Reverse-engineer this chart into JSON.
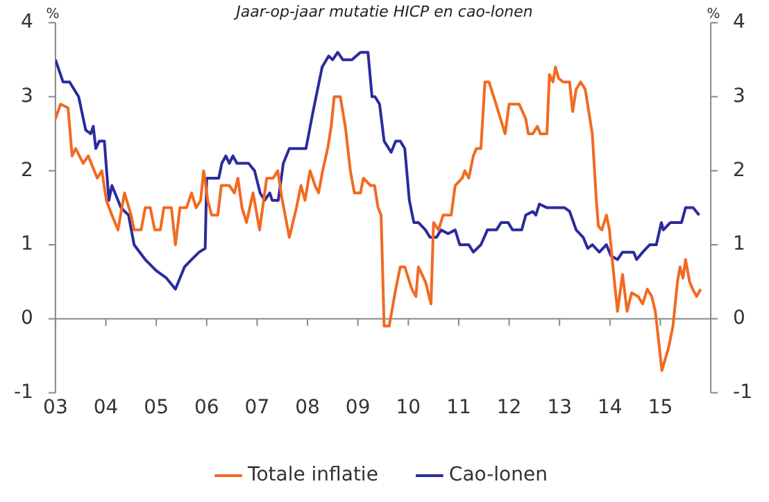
{
  "chart_data": {
    "type": "line",
    "title": "Jaar-op-jaar mutatie HICP en cao-lonen",
    "ylabel": "%",
    "y2label": "%",
    "xlim": [
      2003,
      2016
    ],
    "xticks": [
      {
        "value": 2003,
        "label": "03"
      },
      {
        "value": 2004,
        "label": "04"
      },
      {
        "value": 2005,
        "label": "05"
      },
      {
        "value": 2006,
        "label": "06"
      },
      {
        "value": 2007,
        "label": "07"
      },
      {
        "value": 2008,
        "label": "08"
      },
      {
        "value": 2009,
        "label": "09"
      },
      {
        "value": 2010,
        "label": "10"
      },
      {
        "value": 2011,
        "label": "11"
      },
      {
        "value": 2012,
        "label": "12"
      },
      {
        "value": 2013,
        "label": "13"
      },
      {
        "value": 2014,
        "label": "14"
      },
      {
        "value": 2015,
        "label": "15"
      }
    ],
    "ylim": [
      -1,
      4
    ],
    "yticks": [
      -1,
      0,
      1,
      2,
      3,
      4
    ],
    "y2lim": [
      -1,
      4
    ],
    "y2ticks": [
      -1,
      0,
      1,
      2,
      3,
      4
    ],
    "ref_lines": [
      {
        "axis": "y",
        "value": 0,
        "color": "#888888"
      }
    ],
    "legend": "bottom",
    "grid": false,
    "marker": "none",
    "line_style": "solid",
    "series": [
      {
        "name": "Totale inflatie",
        "color": "#f26a21",
        "x": [
          2003.0,
          2003.1,
          2003.25,
          2003.33,
          2003.4,
          2003.55,
          2003.65,
          2003.83,
          2003.92,
          2004.01,
          2004.12,
          2004.24,
          2004.37,
          2004.5,
          2004.56,
          2004.7,
          2004.78,
          2004.88,
          2004.97,
          2005.08,
          2005.15,
          2005.3,
          2005.38,
          2005.47,
          2005.6,
          2005.7,
          2005.79,
          2005.88,
          2005.94,
          2006.02,
          2006.1,
          2006.22,
          2006.29,
          2006.45,
          2006.55,
          2006.62,
          2006.7,
          2006.79,
          2006.92,
          2007.05,
          2007.19,
          2007.32,
          2007.41,
          2007.5,
          2007.64,
          2007.78,
          2007.87,
          2007.95,
          2008.05,
          2008.15,
          2008.22,
          2008.3,
          2008.4,
          2008.47,
          2008.53,
          2008.65,
          2008.75,
          2008.85,
          2008.93,
          2009.05,
          2009.11,
          2009.25,
          2009.33,
          2009.4,
          2009.46,
          2009.52,
          2009.62,
          2009.75,
          2009.84,
          2009.93,
          2010.07,
          2010.15,
          2010.2,
          2010.34,
          2010.45,
          2010.5,
          2010.6,
          2010.69,
          2010.85,
          2010.93,
          2011.07,
          2011.12,
          2011.2,
          2011.29,
          2011.35,
          2011.44,
          2011.52,
          2011.6,
          2011.74,
          2011.83,
          2011.92,
          2012.0,
          2012.2,
          2012.33,
          2012.38,
          2012.47,
          2012.56,
          2012.62,
          2012.75,
          2012.8,
          2012.87,
          2012.92,
          2012.98,
          2013.07,
          2013.2,
          2013.26,
          2013.33,
          2013.42,
          2013.51,
          2013.65,
          2013.73,
          2013.77,
          2013.84,
          2013.93,
          2013.99,
          2014.06,
          2014.15,
          2014.25,
          2014.34,
          2014.43,
          2014.56,
          2014.65,
          2014.74,
          2014.83,
          2014.9,
          2014.95,
          2015.03,
          2015.16,
          2015.25,
          2015.34,
          2015.39,
          2015.45,
          2015.5,
          2015.58,
          2015.64,
          2015.72,
          2015.8
        ],
        "values": [
          2.7,
          2.9,
          2.85,
          2.2,
          2.3,
          2.1,
          2.2,
          1.9,
          2.0,
          1.6,
          1.4,
          1.2,
          1.7,
          1.4,
          1.2,
          1.2,
          1.5,
          1.5,
          1.2,
          1.2,
          1.5,
          1.5,
          1.0,
          1.5,
          1.5,
          1.7,
          1.5,
          1.6,
          2.0,
          1.6,
          1.4,
          1.4,
          1.8,
          1.8,
          1.7,
          1.9,
          1.5,
          1.3,
          1.7,
          1.2,
          1.9,
          1.9,
          2.0,
          1.6,
          1.1,
          1.5,
          1.8,
          1.6,
          2.0,
          1.8,
          1.7,
          2.0,
          2.3,
          2.6,
          3.0,
          3.0,
          2.6,
          2.0,
          1.7,
          1.7,
          1.9,
          1.8,
          1.8,
          1.5,
          1.4,
          -0.1,
          -0.1,
          0.4,
          0.7,
          0.7,
          0.4,
          0.3,
          0.7,
          0.5,
          0.2,
          1.3,
          1.2,
          1.4,
          1.4,
          1.8,
          1.9,
          2.0,
          1.9,
          2.2,
          2.3,
          2.3,
          3.2,
          3.2,
          2.9,
          2.7,
          2.5,
          2.9,
          2.9,
          2.7,
          2.5,
          2.5,
          2.6,
          2.5,
          2.5,
          3.3,
          3.2,
          3.4,
          3.25,
          3.2,
          3.2,
          2.8,
          3.1,
          3.2,
          3.1,
          2.5,
          1.6,
          1.25,
          1.2,
          1.4,
          1.2,
          0.7,
          0.1,
          0.6,
          0.1,
          0.35,
          0.3,
          0.2,
          0.4,
          0.3,
          0.1,
          -0.2,
          -0.7,
          -0.4,
          -0.1,
          0.5,
          0.7,
          0.55,
          0.8,
          0.5,
          0.4,
          0.3,
          0.4
        ]
      },
      {
        "name": "Cao-lonen",
        "color": "#2b2b9e",
        "x": [
          2003.0,
          2003.15,
          2003.28,
          2003.46,
          2003.6,
          2003.7,
          2003.75,
          2003.8,
          2003.87,
          2003.97,
          2004.06,
          2004.12,
          2004.3,
          2004.45,
          2004.56,
          2004.78,
          2005.0,
          2005.2,
          2005.38,
          2005.56,
          2005.7,
          2005.85,
          2005.97,
          2006.0,
          2006.24,
          2006.3,
          2006.38,
          2006.45,
          2006.52,
          2006.6,
          2006.83,
          2006.95,
          2007.06,
          2007.15,
          2007.25,
          2007.3,
          2007.42,
          2007.52,
          2007.64,
          2007.97,
          2008.11,
          2008.29,
          2008.42,
          2008.5,
          2008.6,
          2008.7,
          2008.88,
          2009.05,
          2009.2,
          2009.28,
          2009.34,
          2009.43,
          2009.52,
          2009.66,
          2009.75,
          2009.84,
          2009.93,
          2010.02,
          2010.11,
          2010.2,
          2010.34,
          2010.43,
          2010.56,
          2010.65,
          2010.79,
          2010.93,
          2011.02,
          2011.2,
          2011.29,
          2011.44,
          2011.57,
          2011.75,
          2011.84,
          2011.98,
          2012.07,
          2012.25,
          2012.33,
          2012.47,
          2012.53,
          2012.6,
          2012.75,
          2013.1,
          2013.2,
          2013.33,
          2013.47,
          2013.56,
          2013.65,
          2013.79,
          2013.93,
          2014.02,
          2014.15,
          2014.25,
          2014.47,
          2014.53,
          2014.65,
          2014.79,
          2014.92,
          2015.02,
          2015.06,
          2015.2,
          2015.42,
          2015.5,
          2015.65,
          2015.77
        ],
        "values": [
          3.5,
          3.2,
          3.2,
          3.0,
          2.55,
          2.5,
          2.6,
          2.3,
          2.4,
          2.4,
          1.6,
          1.8,
          1.5,
          1.4,
          1.0,
          0.8,
          0.65,
          0.55,
          0.4,
          0.7,
          0.8,
          0.9,
          0.95,
          1.9,
          1.9,
          2.1,
          2.2,
          2.1,
          2.2,
          2.1,
          2.1,
          2.0,
          1.7,
          1.6,
          1.7,
          1.6,
          1.6,
          2.1,
          2.3,
          2.3,
          2.8,
          3.4,
          3.55,
          3.5,
          3.6,
          3.5,
          3.5,
          3.6,
          3.6,
          3.0,
          3.0,
          2.9,
          2.4,
          2.25,
          2.4,
          2.4,
          2.3,
          1.6,
          1.3,
          1.3,
          1.2,
          1.1,
          1.1,
          1.2,
          1.15,
          1.2,
          1.0,
          1.0,
          0.9,
          1.0,
          1.2,
          1.2,
          1.3,
          1.3,
          1.2,
          1.2,
          1.4,
          1.45,
          1.4,
          1.55,
          1.5,
          1.5,
          1.45,
          1.2,
          1.1,
          0.95,
          1.0,
          0.9,
          1.0,
          0.85,
          0.8,
          0.9,
          0.9,
          0.8,
          0.9,
          1.0,
          1.0,
          1.3,
          1.2,
          1.3,
          1.3,
          1.5,
          1.5,
          1.4
        ]
      }
    ]
  }
}
